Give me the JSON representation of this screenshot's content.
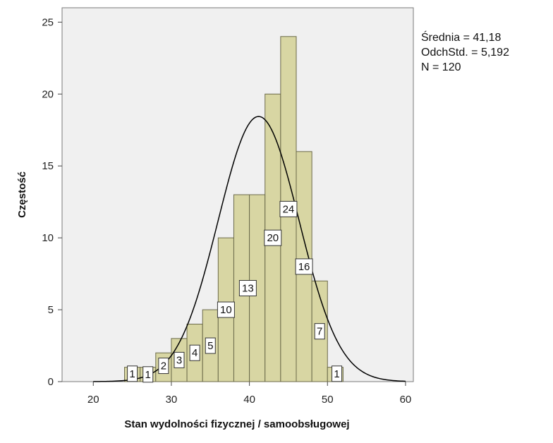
{
  "chart_data": {
    "type": "bar",
    "subtype": "histogram-with-normal-curve",
    "xlabel": "Stan wydolności fizycznej / samoobsługowej",
    "ylabel": "Częstość",
    "xlim": [
      16,
      61
    ],
    "ylim": [
      0,
      26
    ],
    "x_ticks": [
      20,
      30,
      40,
      50,
      60
    ],
    "y_ticks": [
      0,
      5,
      10,
      15,
      20,
      25
    ],
    "bin_width": 2,
    "bins": [
      {
        "start": 24,
        "value": 1
      },
      {
        "start": 26,
        "value": 1
      },
      {
        "start": 28,
        "value": 2
      },
      {
        "start": 30,
        "value": 3
      },
      {
        "start": 32,
        "value": 4
      },
      {
        "start": 34,
        "value": 5
      },
      {
        "start": 36,
        "value": 10
      },
      {
        "start": 38,
        "value": 13
      },
      {
        "start": 40,
        "value": 13
      },
      {
        "start": 42,
        "value": 20
      },
      {
        "start": 44,
        "value": 24
      },
      {
        "start": 46,
        "value": 16
      },
      {
        "start": 48,
        "value": 7
      },
      {
        "start": 50,
        "value": 1
      }
    ],
    "data_labels": [
      {
        "text": "1",
        "x": 25.0,
        "y": 0.55
      },
      {
        "text": "1",
        "x": 27.0,
        "y": 0.5
      },
      {
        "text": "2",
        "x": 29.0,
        "y": 1.1
      },
      {
        "text": "3",
        "x": 31.0,
        "y": 1.5
      },
      {
        "text": "4",
        "x": 33.0,
        "y": 2.0
      },
      {
        "text": "5",
        "x": 35.0,
        "y": 2.5
      },
      {
        "text": "10",
        "x": 37.0,
        "y": 5.0
      },
      {
        "text": "13",
        "x": 39.8,
        "y": 6.5
      },
      {
        "text": "20",
        "x": 43.0,
        "y": 10.0
      },
      {
        "text": "24",
        "x": 45.0,
        "y": 12.0
      },
      {
        "text": "16",
        "x": 47.0,
        "y": 8.0
      },
      {
        "text": "7",
        "x": 49.0,
        "y": 3.5
      },
      {
        "text": "1",
        "x": 51.2,
        "y": 0.55
      }
    ],
    "normal_curve": {
      "mean": 41.18,
      "sd": 5.192,
      "n": 120
    },
    "stats": [
      "Średnia = 41,18",
      "OdchStd. = 5,192",
      "N = 120"
    ],
    "colors": {
      "bar_fill": "#d8d6a3",
      "bar_stroke": "#6b6a4a",
      "plot_bg": "#f0f0f0",
      "curve": "#000000"
    }
  }
}
